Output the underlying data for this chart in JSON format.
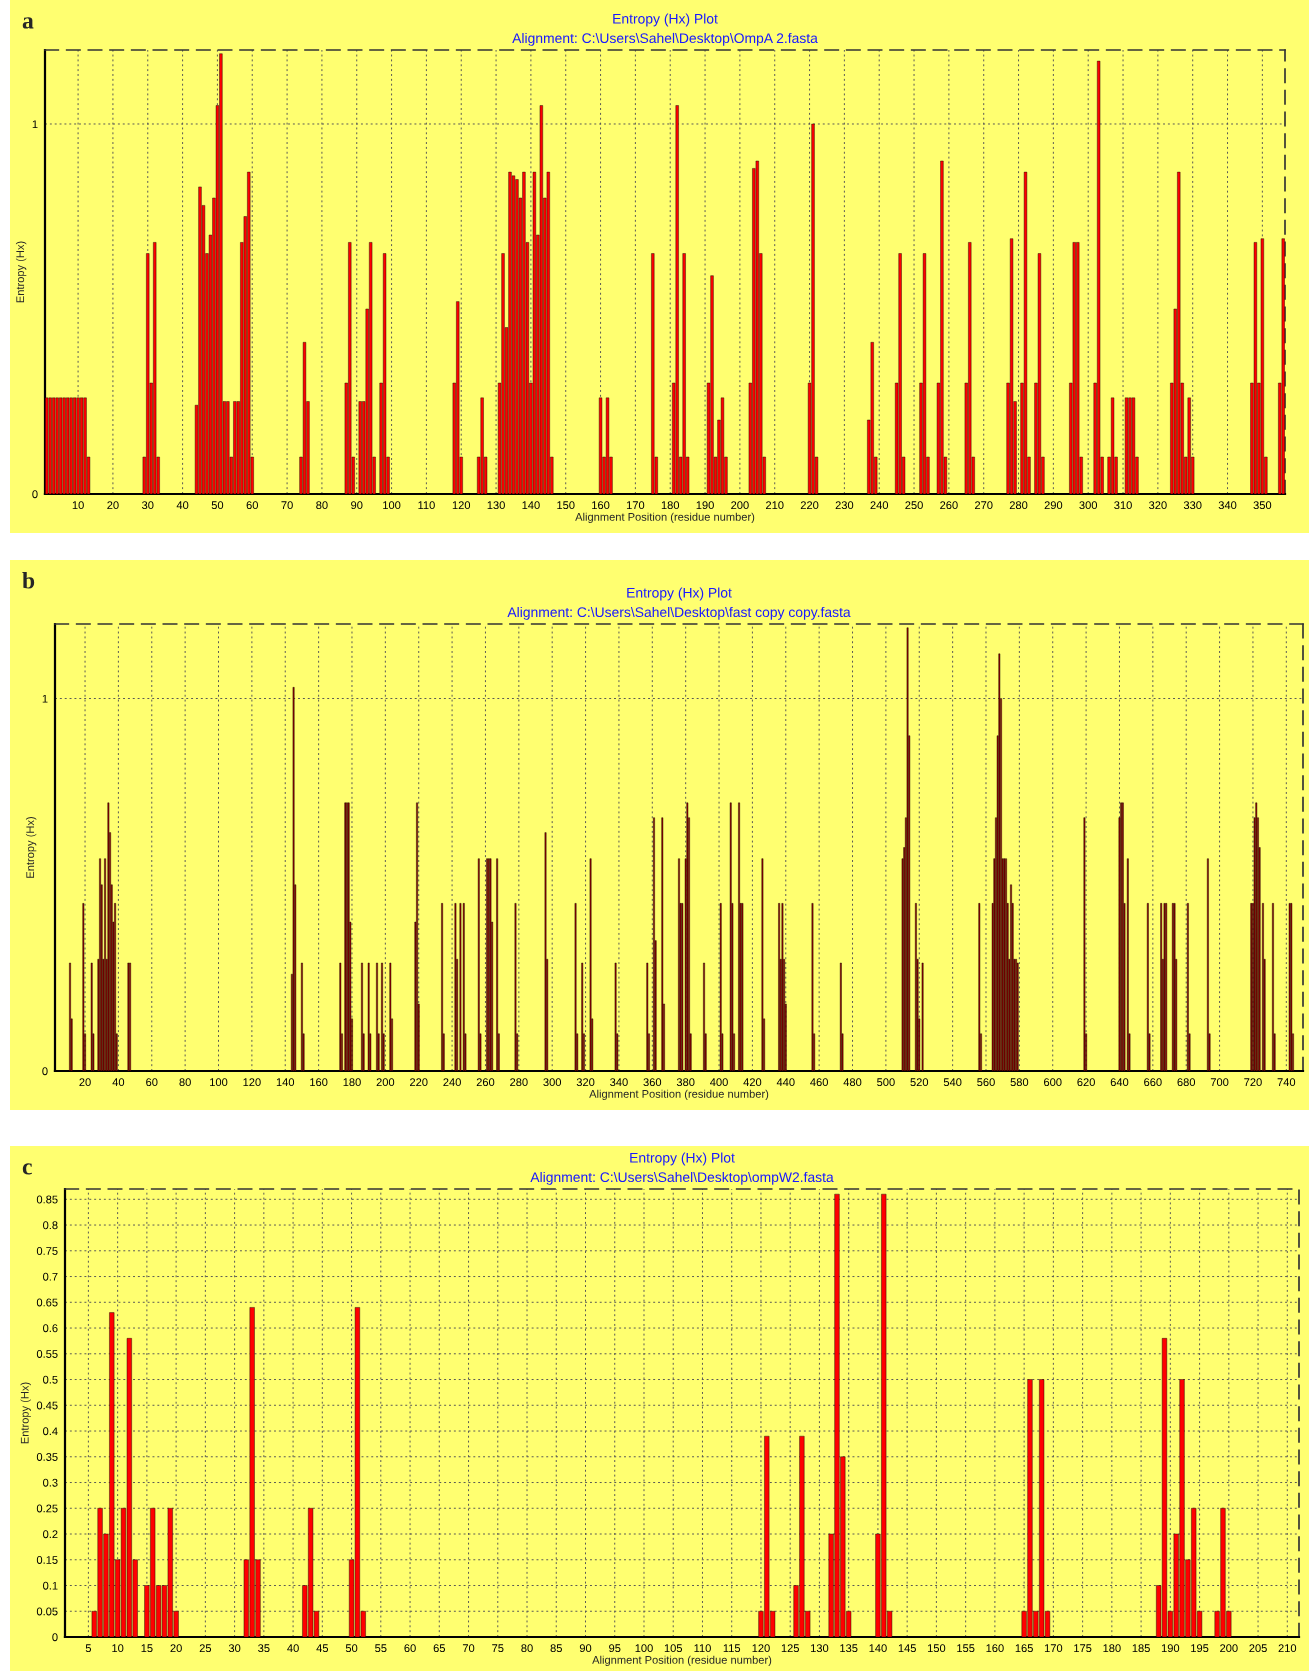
{
  "chart_data": [
    {
      "type": "bar",
      "title": "Entropy (Hx) Plot",
      "subtitle": "Alignment: C:\\Users\\Sahel\\Desktop\\OmpA 2.fasta",
      "xlabel": "Alignment Position (residue number)",
      "ylabel": "Entropy (Hx)",
      "annotations": [
        "a"
      ],
      "x": [
        1,
        2,
        3,
        4,
        5,
        6,
        7,
        8,
        9,
        10,
        11,
        12,
        13,
        29,
        30,
        31,
        32,
        33,
        44,
        45,
        46,
        47,
        48,
        49,
        50,
        51,
        52,
        53,
        54,
        55,
        56,
        57,
        58,
        59,
        60,
        74,
        75,
        76,
        87,
        88,
        89,
        91,
        92,
        93,
        94,
        95,
        97,
        98,
        99,
        118,
        119,
        120,
        125,
        126,
        127,
        131,
        132,
        133,
        134,
        135,
        136,
        137,
        138,
        139,
        140,
        141,
        142,
        143,
        144,
        145,
        146,
        160,
        161,
        162,
        163,
        175,
        176,
        181,
        182,
        183,
        184,
        185,
        191,
        192,
        193,
        194,
        195,
        196,
        203,
        204,
        205,
        206,
        207,
        220,
        221,
        222,
        237,
        238,
        239,
        245,
        246,
        247,
        252,
        253,
        254,
        257,
        258,
        259,
        265,
        266,
        267,
        277,
        278,
        279,
        281,
        282,
        283,
        285,
        286,
        287,
        295,
        296,
        297,
        298,
        302,
        303,
        304,
        306,
        307,
        308,
        311,
        312,
        313,
        314,
        324,
        325,
        326,
        327,
        328,
        329,
        330,
        347,
        348,
        349,
        350,
        351,
        355,
        356
      ],
      "values": [
        0.26,
        0.26,
        0.26,
        0.26,
        0.26,
        0.26,
        0.26,
        0.26,
        0.26,
        0.26,
        0.26,
        0.26,
        0.1,
        0.1,
        0.65,
        0.3,
        0.68,
        0.1,
        0.24,
        0.83,
        0.78,
        0.65,
        0.7,
        0.8,
        1.05,
        1.19,
        0.25,
        0.25,
        0.1,
        0.25,
        0.25,
        0.68,
        0.75,
        0.87,
        0.1,
        0.1,
        0.41,
        0.25,
        0.3,
        0.68,
        0.1,
        0.25,
        0.25,
        0.5,
        0.68,
        0.1,
        0.3,
        0.65,
        0.1,
        0.3,
        0.52,
        0.1,
        0.1,
        0.26,
        0.1,
        0.3,
        0.65,
        0.45,
        0.87,
        0.86,
        0.85,
        0.8,
        0.87,
        0.68,
        0.3,
        0.87,
        0.7,
        1.05,
        0.8,
        0.87,
        0.1,
        0.26,
        0.1,
        0.26,
        0.1,
        0.65,
        0.1,
        0.3,
        1.05,
        0.1,
        0.65,
        0.1,
        0.3,
        0.59,
        0.1,
        0.2,
        0.26,
        0.1,
        0.3,
        0.88,
        0.9,
        0.65,
        0.1,
        0.3,
        1.0,
        0.1,
        0.2,
        0.41,
        0.1,
        0.3,
        0.65,
        0.1,
        0.3,
        0.65,
        0.1,
        0.3,
        0.9,
        0.1,
        0.3,
        0.68,
        0.1,
        0.3,
        0.69,
        0.25,
        0.3,
        0.87,
        0.1,
        0.3,
        0.65,
        0.1,
        0.3,
        0.68,
        0.68,
        0.1,
        0.3,
        1.17,
        0.1,
        0.1,
        0.26,
        0.1,
        0.26,
        0.26,
        0.26,
        0.1,
        0.3,
        0.5,
        0.87,
        0.3,
        0.1,
        0.26,
        0.1,
        0.3,
        0.68,
        0.3,
        0.69,
        0.1,
        0.3,
        0.69
      ],
      "color": "#ff0000",
      "xlim": [
        0.5,
        356.5
      ],
      "ylim": [
        0,
        1.2
      ],
      "xticks": [
        10,
        20,
        30,
        40,
        50,
        60,
        70,
        80,
        90,
        100,
        110,
        120,
        130,
        140,
        150,
        160,
        170,
        180,
        190,
        200,
        210,
        220,
        230,
        240,
        250,
        260,
        270,
        280,
        290,
        300,
        310,
        320,
        330,
        340,
        350
      ],
      "yticks": [
        0,
        1
      ],
      "grid": true
    },
    {
      "type": "bar",
      "title": "Entropy (Hx) Plot",
      "subtitle": "Alignment: C:\\Users\\Sahel\\Desktop\\fast copy copy.fasta",
      "xlabel": "Alignment Position (residue number)",
      "ylabel": "Entropy (Hx)",
      "annotations": [
        "b"
      ],
      "x": [
        11,
        12,
        19,
        20,
        24,
        25,
        28,
        29,
        30,
        31,
        32,
        33,
        34,
        35,
        36,
        37,
        38,
        39,
        46,
        47,
        144,
        145,
        146,
        150,
        151,
        173,
        174,
        176,
        177,
        178,
        179,
        180,
        186,
        187,
        190,
        191,
        195,
        196,
        198,
        199,
        203,
        204,
        218,
        219,
        220,
        234,
        235,
        242,
        243,
        245,
        247,
        248,
        256,
        257,
        261,
        262,
        263,
        264,
        267,
        268,
        278,
        279,
        296,
        297,
        314,
        315,
        318,
        319,
        323,
        324,
        338,
        339,
        357,
        358,
        361,
        362,
        366,
        367,
        376,
        377,
        378,
        380,
        381,
        382,
        383,
        391,
        392,
        401,
        402,
        407,
        408,
        409,
        412,
        413,
        414,
        426,
        427,
        436,
        437,
        438,
        439,
        440,
        456,
        457,
        473,
        474,
        510,
        511,
        512,
        513,
        514,
        518,
        519,
        520,
        522,
        556,
        557,
        564,
        565,
        566,
        567,
        568,
        569,
        570,
        571,
        572,
        573,
        574,
        575,
        576,
        577,
        578,
        579,
        619,
        620,
        640,
        641,
        642,
        643,
        645,
        646,
        657,
        658,
        665,
        666,
        667,
        668,
        672,
        673,
        674,
        681,
        682,
        693,
        694,
        719,
        720,
        721,
        722,
        723,
        724,
        726,
        727,
        732,
        733,
        742,
        743,
        744
      ],
      "values": [
        0.29,
        0.14,
        0.45,
        0.1,
        0.29,
        0.1,
        0.3,
        0.57,
        0.5,
        0.3,
        0.57,
        0.3,
        0.72,
        0.64,
        0.5,
        0.4,
        0.45,
        0.1,
        0.29,
        0.29,
        0.26,
        1.03,
        0.5,
        0.29,
        0.1,
        0.29,
        0.1,
        0.72,
        0.72,
        0.72,
        0.4,
        0.14,
        0.29,
        0.1,
        0.29,
        0.1,
        0.29,
        0.1,
        0.29,
        0.1,
        0.29,
        0.14,
        0.4,
        0.72,
        0.18,
        0.45,
        0.1,
        0.45,
        0.3,
        0.45,
        0.45,
        0.1,
        0.57,
        0.1,
        0.57,
        0.57,
        0.57,
        0.4,
        0.57,
        0.1,
        0.45,
        0.1,
        0.64,
        0.3,
        0.45,
        0.1,
        0.29,
        0.1,
        0.57,
        0.14,
        0.29,
        0.1,
        0.29,
        0.1,
        0.68,
        0.35,
        0.68,
        0.18,
        0.57,
        0.45,
        0.45,
        0.57,
        0.72,
        0.68,
        0.1,
        0.29,
        0.1,
        0.45,
        0.1,
        0.72,
        0.45,
        0.1,
        0.72,
        0.45,
        0.45,
        0.57,
        0.14,
        0.45,
        0.3,
        0.45,
        0.3,
        0.18,
        0.45,
        0.1,
        0.29,
        0.1,
        0.57,
        0.6,
        0.68,
        1.19,
        0.9,
        0.45,
        0.3,
        0.14,
        0.29,
        0.45,
        0.1,
        0.45,
        0.57,
        0.68,
        0.9,
        1.12,
        1.0,
        0.57,
        0.57,
        0.57,
        0.45,
        0.3,
        0.5,
        0.45,
        0.3,
        0.3,
        0.29,
        0.68,
        0.1,
        0.68,
        0.72,
        0.72,
        0.45,
        0.57,
        0.1,
        0.45,
        0.1,
        0.45,
        0.3,
        0.45,
        0.45,
        0.45,
        0.45,
        0.3,
        0.45,
        0.1,
        0.57,
        0.1,
        0.45,
        0.45,
        0.68,
        0.72,
        0.68,
        0.6,
        0.45,
        0.3,
        0.45,
        0.1,
        0.45,
        0.45,
        0.1
      ],
      "color": "#990000",
      "xlim": [
        2,
        750
      ],
      "ylim": [
        0,
        1.2
      ],
      "xticks": [
        20,
        40,
        60,
        80,
        100,
        120,
        140,
        160,
        180,
        200,
        220,
        240,
        260,
        280,
        300,
        320,
        340,
        360,
        380,
        400,
        420,
        440,
        460,
        480,
        500,
        520,
        540,
        560,
        580,
        600,
        620,
        640,
        660,
        680,
        700,
        720,
        740
      ],
      "yticks": [
        0,
        1
      ],
      "grid": true
    },
    {
      "type": "bar",
      "title": "Entropy (Hx) Plot",
      "subtitle": "Alignment: C:\\Users\\Sahel\\Desktop\\ompW2.fasta",
      "xlabel": "Alignment Position (residue number)",
      "ylabel": "Entropy (Hx)",
      "annotations": [
        "c"
      ],
      "x": [
        6,
        7,
        8,
        9,
        10,
        11,
        12,
        13,
        15,
        16,
        17,
        18,
        19,
        20,
        32,
        33,
        34,
        42,
        43,
        44,
        50,
        51,
        52,
        120,
        121,
        122,
        126,
        127,
        128,
        132,
        133,
        134,
        135,
        140,
        141,
        142,
        165,
        166,
        167,
        168,
        169,
        188,
        189,
        190,
        191,
        192,
        193,
        194,
        195,
        198,
        199,
        200
      ],
      "values": [
        0.05,
        0.25,
        0.2,
        0.63,
        0.15,
        0.25,
        0.58,
        0.15,
        0.1,
        0.25,
        0.1,
        0.1,
        0.25,
        0.05,
        0.15,
        0.64,
        0.15,
        0.1,
        0.25,
        0.05,
        0.15,
        0.64,
        0.05,
        0.05,
        0.39,
        0.05,
        0.1,
        0.39,
        0.05,
        0.2,
        0.86,
        0.35,
        0.05,
        0.2,
        0.86,
        0.05,
        0.05,
        0.5,
        0.05,
        0.5,
        0.05,
        0.1,
        0.58,
        0.05,
        0.2,
        0.5,
        0.15,
        0.25,
        0.05,
        0.05,
        0.25,
        0.05
      ],
      "color": "#ff0000",
      "xlim": [
        1,
        212
      ],
      "ylim": [
        0,
        0.87
      ],
      "xticks": [
        5,
        10,
        15,
        20,
        25,
        30,
        35,
        40,
        45,
        50,
        55,
        60,
        65,
        70,
        75,
        80,
        85,
        90,
        95,
        100,
        105,
        110,
        115,
        120,
        125,
        130,
        135,
        140,
        145,
        150,
        155,
        160,
        165,
        170,
        175,
        180,
        185,
        190,
        195,
        200,
        205,
        210
      ],
      "yticks": [
        0,
        0.05,
        0.1,
        0.15,
        0.2,
        0.25,
        0.3,
        0.35,
        0.4,
        0.45,
        0.5,
        0.55,
        0.6,
        0.65,
        0.7,
        0.75,
        0.8,
        0.85
      ],
      "grid": true
    }
  ]
}
